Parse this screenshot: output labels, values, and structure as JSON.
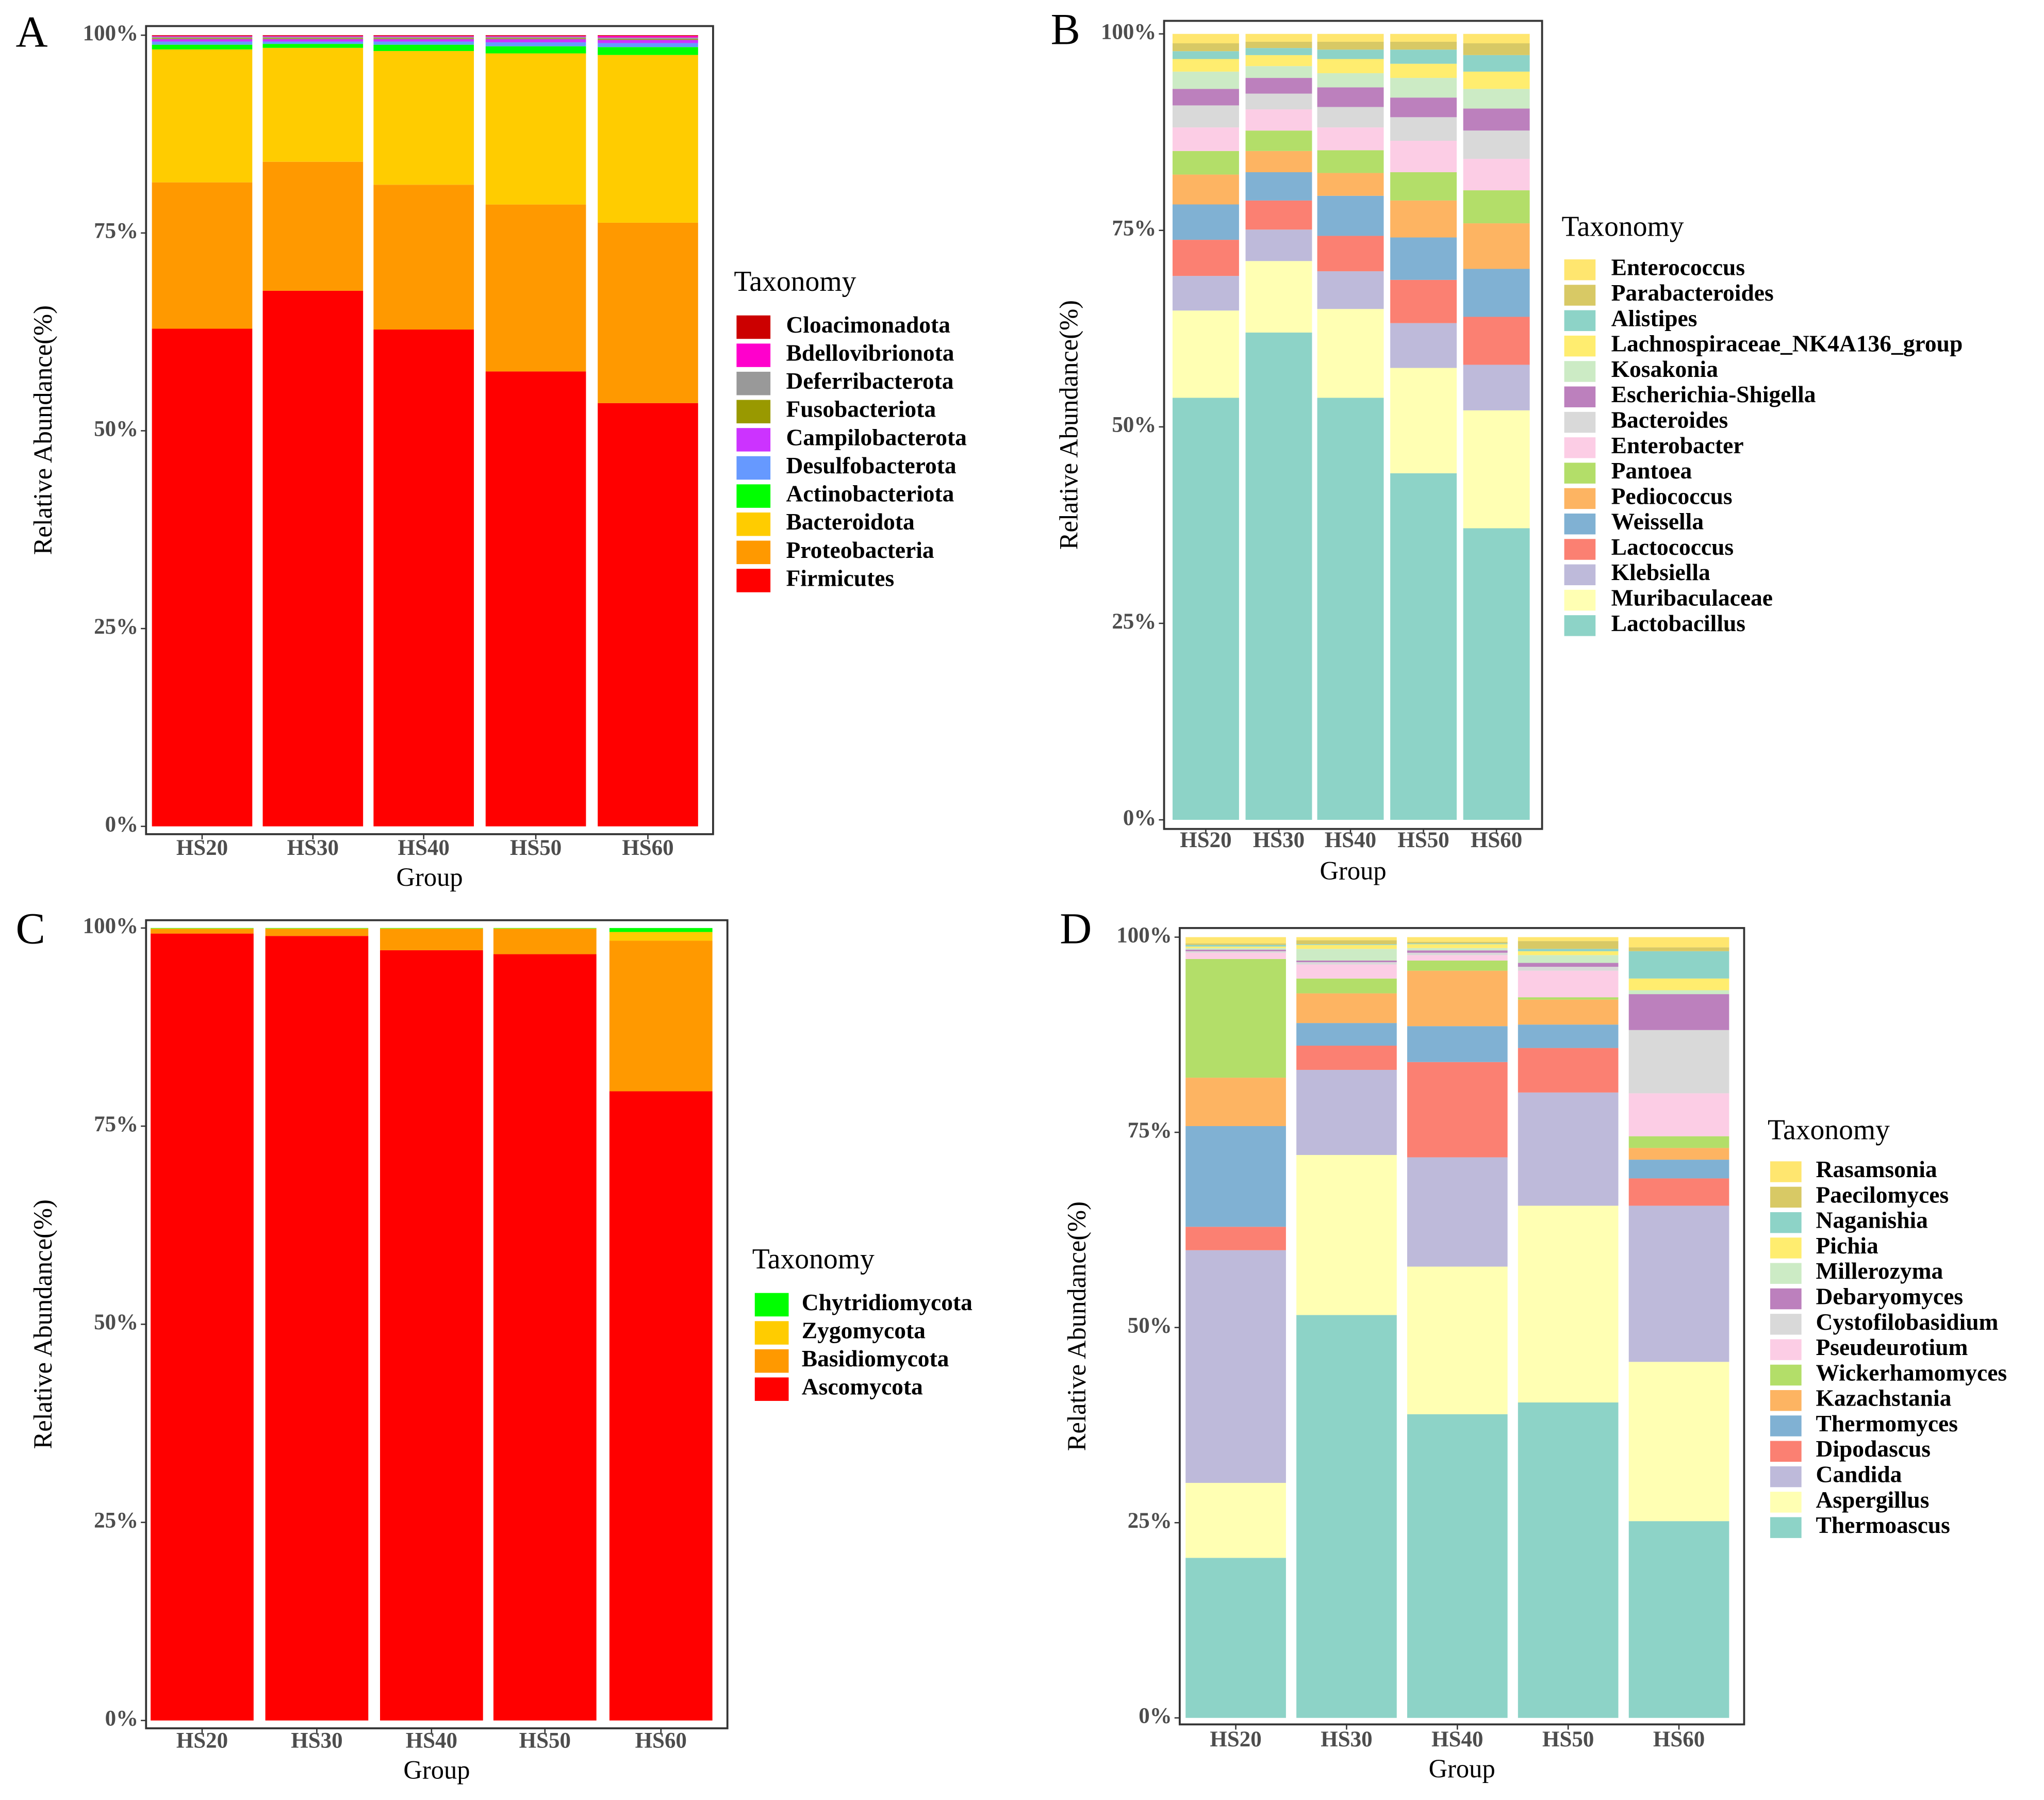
{
  "chart_data": [
    {
      "type": "bar",
      "stacked": true,
      "label": "A",
      "xlabel": "Group",
      "ylabel": "Relative Abundance(%)",
      "legend_title": "Taxonomy",
      "categories": [
        "HS20",
        "HS30",
        "HS40",
        "HS50",
        "HS60"
      ],
      "ylim": [
        0,
        100
      ],
      "yticks": [
        {
          "value": 0,
          "label": "0%"
        },
        {
          "value": 25,
          "label": "25%"
        },
        {
          "value": 50,
          "label": "50%"
        },
        {
          "value": 75,
          "label": "75%"
        },
        {
          "value": 100,
          "label": "100%"
        }
      ],
      "series": [
        {
          "name": "Firmicutes",
          "color": "#FF0000",
          "values": [
            62.9,
            67.7,
            62.8,
            57.5,
            53.5
          ]
        },
        {
          "name": "Proteobacteria",
          "color": "#FF9900",
          "values": [
            18.5,
            16.3,
            18.3,
            21.1,
            22.8
          ]
        },
        {
          "name": "Bacteroidota",
          "color": "#FFCC00",
          "values": [
            16.8,
            14.4,
            16.9,
            19.1,
            21.2
          ]
        },
        {
          "name": "Actinobacteriota",
          "color": "#00FF00",
          "values": [
            0.6,
            0.5,
            0.8,
            0.9,
            1.0
          ]
        },
        {
          "name": "Desulfobacterota",
          "color": "#6699FF",
          "values": [
            0.4,
            0.3,
            0.4,
            0.5,
            0.5
          ]
        },
        {
          "name": "Campilobacterota",
          "color": "#CC33FF",
          "values": [
            0.3,
            0.3,
            0.3,
            0.4,
            0.4
          ]
        },
        {
          "name": "Fusobacteriota",
          "color": "#999900",
          "values": [
            0.1,
            0.1,
            0.1,
            0.1,
            0.1
          ]
        },
        {
          "name": "Deferribacterota",
          "color": "#999999",
          "values": [
            0.2,
            0.2,
            0.2,
            0.2,
            0.2
          ]
        },
        {
          "name": "Bdellovibrionota",
          "color": "#FF00CC",
          "values": [
            0.1,
            0.1,
            0.1,
            0.1,
            0.2
          ]
        },
        {
          "name": "Cloacimonadota",
          "color": "#CC0000",
          "values": [
            0.1,
            0.1,
            0.1,
            0.1,
            0.1
          ]
        }
      ]
    },
    {
      "type": "bar",
      "stacked": true,
      "label": "B",
      "xlabel": "Group",
      "ylabel": "Relative Abundance(%)",
      "legend_title": "Taxonomy",
      "categories": [
        "HS20",
        "HS30",
        "HS40",
        "HS50",
        "HS60"
      ],
      "ylim": [
        0,
        100
      ],
      "yticks": [
        {
          "value": 0,
          "label": "0%"
        },
        {
          "value": 25,
          "label": "25%"
        },
        {
          "value": 50,
          "label": "50%"
        },
        {
          "value": 75,
          "label": "75%"
        },
        {
          "value": 100,
          "label": "100%"
        }
      ],
      "series": [
        {
          "name": "Lactobacillus",
          "color": "#8DD3C7",
          "values": [
            53.7,
            62.0,
            53.7,
            44.1,
            37.1
          ]
        },
        {
          "name": "Muribaculaceae",
          "color": "#FFFFB3",
          "values": [
            11.1,
            9.1,
            11.3,
            13.4,
            15.0
          ]
        },
        {
          "name": "Klebsiella",
          "color": "#BEBADA",
          "values": [
            4.4,
            4.0,
            4.8,
            5.7,
            5.8
          ]
        },
        {
          "name": "Lactococcus",
          "color": "#FB8072",
          "values": [
            4.6,
            3.7,
            4.5,
            5.5,
            6.1
          ]
        },
        {
          "name": "Weissella",
          "color": "#80B1D3",
          "values": [
            4.5,
            3.6,
            5.1,
            5.4,
            6.1
          ]
        },
        {
          "name": "Pediococcus",
          "color": "#FDB462",
          "values": [
            3.8,
            2.7,
            2.9,
            4.7,
            5.8
          ]
        },
        {
          "name": "Pantoea",
          "color": "#B3DE69",
          "values": [
            3.0,
            2.6,
            2.9,
            3.6,
            4.2
          ]
        },
        {
          "name": "Enterobacter",
          "color": "#FCCDE5",
          "values": [
            3.0,
            2.7,
            2.9,
            4.0,
            4.0
          ]
        },
        {
          "name": "Bacteroides",
          "color": "#D9D9D9",
          "values": [
            2.8,
            2.0,
            2.6,
            3.0,
            3.6
          ]
        },
        {
          "name": "Escherichia-Shigella",
          "color": "#BC80BD",
          "values": [
            2.1,
            2.0,
            2.5,
            2.5,
            2.8
          ]
        },
        {
          "name": "Kosakonia",
          "color": "#CCEBC5",
          "values": [
            2.2,
            1.5,
            1.8,
            2.5,
            2.5
          ]
        },
        {
          "name": "Lachnospiraceae_NK4A136_group",
          "color": "#FFED6F",
          "values": [
            1.6,
            1.4,
            1.8,
            1.8,
            2.2
          ]
        },
        {
          "name": "Alistipes",
          "color": "#8DD3C7",
          "values": [
            1.0,
            0.9,
            1.2,
            1.8,
            2.1
          ]
        },
        {
          "name": "Parabacteroides",
          "color": "#D8C965",
          "values": [
            1.0,
            0.8,
            1.0,
            1.0,
            1.5
          ]
        },
        {
          "name": "Enterococcus",
          "color": "#FFE66F",
          "values": [
            1.2,
            1.0,
            1.0,
            1.0,
            1.2
          ]
        }
      ]
    },
    {
      "type": "bar",
      "stacked": true,
      "label": "C",
      "xlabel": "Group",
      "ylabel": "Relative Abundance(%)",
      "legend_title": "Taxonomy",
      "categories": [
        "HS20",
        "HS30",
        "HS40",
        "HS50",
        "HS60"
      ],
      "ylim": [
        0,
        100
      ],
      "yticks": [
        {
          "value": 0,
          "label": "0%"
        },
        {
          "value": 25,
          "label": "25%"
        },
        {
          "value": 50,
          "label": "50%"
        },
        {
          "value": 75,
          "label": "75%"
        },
        {
          "value": 100,
          "label": "100%"
        }
      ],
      "series": [
        {
          "name": "Ascomycota",
          "color": "#FF0000",
          "values": [
            99.3,
            99.0,
            97.2,
            96.7,
            79.4
          ]
        },
        {
          "name": "Basidiomycota",
          "color": "#FF9900",
          "values": [
            0.6,
            0.9,
            2.7,
            3.2,
            19.0
          ]
        },
        {
          "name": "Zygomycota",
          "color": "#FFCC00",
          "values": [
            0.05,
            0.05,
            0.05,
            0.05,
            1.1
          ]
        },
        {
          "name": "Chytridiomycota",
          "color": "#00FF00",
          "values": [
            0.05,
            0.05,
            0.05,
            0.05,
            0.5
          ]
        }
      ]
    },
    {
      "type": "bar",
      "stacked": true,
      "label": "D",
      "xlabel": "Group",
      "ylabel": "Relative Abundance(%)",
      "legend_title": "Taxonomy",
      "categories": [
        "HS20",
        "HS30",
        "HS40",
        "HS50",
        "HS60"
      ],
      "ylim": [
        0,
        100
      ],
      "yticks": [
        {
          "value": 0,
          "label": "0%"
        },
        {
          "value": 25,
          "label": "25%"
        },
        {
          "value": 50,
          "label": "50%"
        },
        {
          "value": 75,
          "label": "75%"
        },
        {
          "value": 100,
          "label": "100%"
        }
      ],
      "series": [
        {
          "name": "Thermoascus",
          "color": "#8DD3C7",
          "values": [
            20.5,
            51.6,
            38.9,
            40.4,
            25.2
          ]
        },
        {
          "name": "Aspergillus",
          "color": "#FFFFB3",
          "values": [
            9.6,
            20.5,
            18.9,
            25.2,
            20.4
          ]
        },
        {
          "name": "Candida",
          "color": "#BEBADA",
          "values": [
            29.8,
            10.9,
            14.0,
            14.5,
            20.0
          ]
        },
        {
          "name": "Dipodascus",
          "color": "#FB8072",
          "values": [
            3.0,
            3.1,
            12.2,
            5.7,
            3.5
          ]
        },
        {
          "name": "Thermomyces",
          "color": "#80B1D3",
          "values": [
            12.9,
            2.9,
            4.6,
            3.0,
            2.4
          ]
        },
        {
          "name": "Kazachstania",
          "color": "#FDB462",
          "values": [
            6.2,
            3.8,
            7.1,
            3.2,
            1.5
          ]
        },
        {
          "name": "Wickerhamomyces",
          "color": "#B3DE69",
          "values": [
            15.2,
            1.9,
            1.3,
            0.3,
            1.5
          ]
        },
        {
          "name": "Pseudeurotium",
          "color": "#FCCDE5",
          "values": [
            0.8,
            1.8,
            0.7,
            3.4,
            5.5
          ]
        },
        {
          "name": "Cystofilobasidium",
          "color": "#D9D9D9",
          "values": [
            0.2,
            0.3,
            0.3,
            0.5,
            8.1
          ]
        },
        {
          "name": "Debaryomyces",
          "color": "#BC80BD",
          "values": [
            0.2,
            0.2,
            0.3,
            0.5,
            4.6
          ]
        },
        {
          "name": "Millerozyma",
          "color": "#CCEBC5",
          "values": [
            0.2,
            1.5,
            0.3,
            1.0,
            0.5
          ]
        },
        {
          "name": "Pichia",
          "color": "#FFED6F",
          "values": [
            0.2,
            0.5,
            0.5,
            0.5,
            1.5
          ]
        },
        {
          "name": "Naganishia",
          "color": "#8DD3C7",
          "values": [
            0.2,
            0.1,
            0.1,
            0.3,
            3.5
          ]
        },
        {
          "name": "Paecilomyces",
          "color": "#D8C965",
          "values": [
            0.2,
            0.5,
            0.2,
            1.0,
            0.5
          ]
        },
        {
          "name": "Rasamsonia",
          "color": "#FFE66F",
          "values": [
            0.8,
            0.4,
            0.6,
            0.5,
            1.3
          ]
        }
      ]
    }
  ]
}
